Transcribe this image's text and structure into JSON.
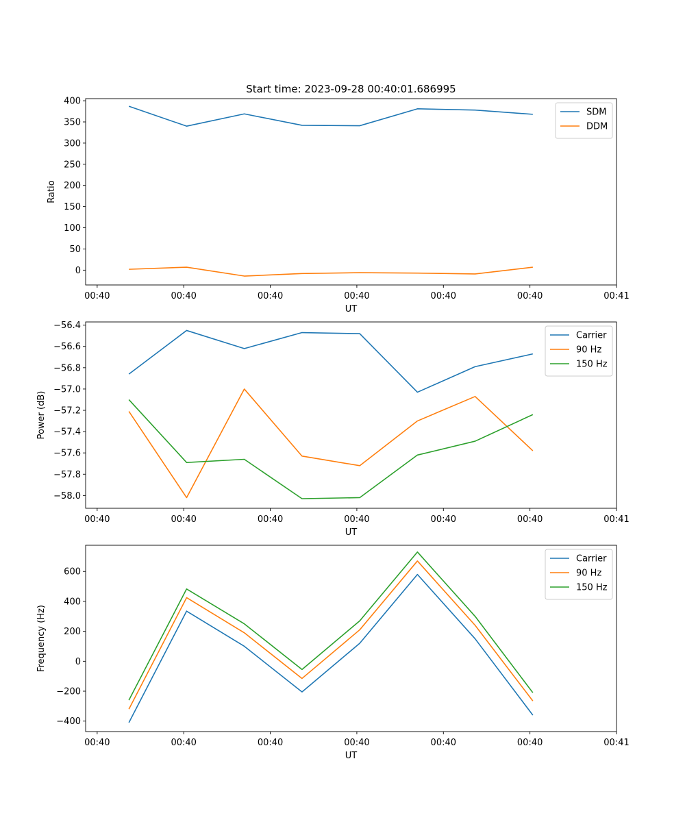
{
  "figure_title": "Start time: 2023-09-28 00:40:01.686995",
  "chart_data": [
    {
      "type": "line",
      "title": "Start time: 2023-09-28 00:40:01.686995",
      "xlabel": "UT",
      "ylabel": "Ratio",
      "x": [
        1,
        2,
        3,
        4,
        5,
        6,
        7,
        8
      ],
      "xlim": [
        0.25,
        9.45
      ],
      "xticks": [
        0.45,
        1.95,
        3.45,
        4.95,
        6.45,
        7.95,
        9.45
      ],
      "xtick_labels": [
        "00:40",
        "00:40",
        "00:40",
        "00:40",
        "00:40",
        "00:40",
        "00:41"
      ],
      "ylim": [
        -35,
        405
      ],
      "yticks": [
        0,
        50,
        100,
        150,
        200,
        250,
        300,
        350,
        400
      ],
      "ytick_labels": [
        "0",
        "50",
        "100",
        "150",
        "200",
        "250",
        "300",
        "350",
        "400"
      ],
      "legend_position": "top-right",
      "series": [
        {
          "name": "SDM",
          "color": "#1f77b4",
          "values": [
            387,
            340,
            369,
            342,
            341,
            381,
            378,
            368
          ]
        },
        {
          "name": "DDM",
          "color": "#ff7f0e",
          "values": [
            2,
            7,
            -14,
            -8,
            -6,
            -7,
            -9,
            7
          ]
        }
      ]
    },
    {
      "type": "line",
      "title": "",
      "xlabel": "UT",
      "ylabel": "Power (dB)",
      "x": [
        1,
        2,
        3,
        4,
        5,
        6,
        7,
        8
      ],
      "xlim": [
        0.25,
        9.45
      ],
      "xticks": [
        0.45,
        1.95,
        3.45,
        4.95,
        6.45,
        7.95,
        9.45
      ],
      "xtick_labels": [
        "00:40",
        "00:40",
        "00:40",
        "00:40",
        "00:40",
        "00:40",
        "00:41"
      ],
      "ylim": [
        -58.12,
        -56.37
      ],
      "yticks": [
        -58.0,
        -57.8,
        -57.6,
        -57.4,
        -57.2,
        -57.0,
        -56.8,
        -56.6,
        -56.4
      ],
      "ytick_labels": [
        "−58.0",
        "−57.8",
        "−57.6",
        "−57.4",
        "−57.2",
        "−57.0",
        "−56.8",
        "−56.6",
        "−56.4"
      ],
      "legend_position": "top-right",
      "series": [
        {
          "name": "Carrier",
          "color": "#1f77b4",
          "values": [
            -56.86,
            -56.45,
            -56.62,
            -56.47,
            -56.48,
            -57.03,
            -56.79,
            -56.67
          ]
        },
        {
          "name": "90 Hz",
          "color": "#ff7f0e",
          "values": [
            -57.21,
            -58.02,
            -57.0,
            -57.63,
            -57.72,
            -57.3,
            -57.07,
            -57.58
          ]
        },
        {
          "name": "150 Hz",
          "color": "#2ca02c",
          "values": [
            -57.1,
            -57.69,
            -57.66,
            -58.03,
            -58.02,
            -57.62,
            -57.49,
            -57.24
          ]
        }
      ]
    },
    {
      "type": "line",
      "title": "",
      "xlabel": "UT",
      "ylabel": "Frequency (Hz)",
      "x": [
        1,
        2,
        3,
        4,
        5,
        6,
        7,
        8
      ],
      "xlim": [
        0.25,
        9.45
      ],
      "xticks": [
        0.45,
        1.95,
        3.45,
        4.95,
        6.45,
        7.95,
        9.45
      ],
      "xtick_labels": [
        "00:40",
        "00:40",
        "00:40",
        "00:40",
        "00:40",
        "00:40",
        "00:41"
      ],
      "ylim": [
        -470,
        775
      ],
      "yticks": [
        -400,
        -200,
        0,
        200,
        400,
        600
      ],
      "ytick_labels": [
        "−400",
        "−200",
        "0",
        "200",
        "400",
        "600"
      ],
      "legend_position": "top-right",
      "series": [
        {
          "name": "Carrier",
          "color": "#1f77b4",
          "values": [
            -410,
            335,
            100,
            -205,
            120,
            580,
            150,
            -360
          ]
        },
        {
          "name": "90 Hz",
          "color": "#ff7f0e",
          "values": [
            -320,
            425,
            190,
            -115,
            210,
            670,
            240,
            -265
          ]
        },
        {
          "name": "150 Hz",
          "color": "#2ca02c",
          "values": [
            -260,
            483,
            250,
            -55,
            270,
            730,
            300,
            -210
          ]
        }
      ]
    }
  ]
}
